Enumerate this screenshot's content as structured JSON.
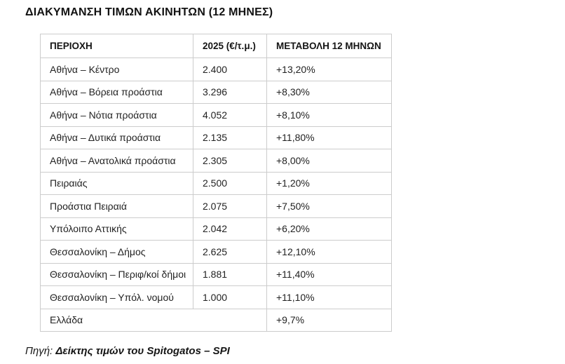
{
  "title": "ΔΙΑΚΥΜΑΝΣΗ ΤΙΜΩΝ ΑΚΙΝΗΤΩΝ (12 ΜΗΝΕΣ)",
  "table": {
    "headers": [
      "ΠΕΡΙΟΧΗ",
      "2025 (€/τ.μ.)",
      "ΜΕΤΑΒΟΛΗ 12 ΜΗΝΩΝ"
    ],
    "rows": [
      {
        "area": "Αθήνα – Κέντρο",
        "price": "2.400",
        "change": "+13,20%"
      },
      {
        "area": "Αθήνα – Βόρεια προάστια",
        "price": "3.296",
        "change": "+8,30%"
      },
      {
        "area": "Αθήνα – Νότια προάστια",
        "price": "4.052",
        "change": "+8,10%"
      },
      {
        "area": "Αθήνα – Δυτικά προάστια",
        "price": "2.135",
        "change": "+11,80%"
      },
      {
        "area": "Αθήνα – Ανατολικά προάστια",
        "price": "2.305",
        "change": "+8,00%"
      },
      {
        "area": "Πειραιάς",
        "price": "2.500",
        "change": "+1,20%"
      },
      {
        "area": "Προάστια Πειραιά",
        "price": "2.075",
        "change": "+7,50%"
      },
      {
        "area": "Υπόλοιπο Αττικής",
        "price": "2.042",
        "change": "+6,20%"
      },
      {
        "area": "Θεσσαλονίκη – Δήμος",
        "price": "2.625",
        "change": "+12,10%"
      },
      {
        "area": "Θεσσαλονίκη – Περιφ/κοί δήμοι",
        "price": "1.881",
        "change": "+11,40%"
      },
      {
        "area": "Θεσσαλονίκη – Υπόλ. νομού",
        "price": "1.000",
        "change": "+11,10%"
      },
      {
        "area": "Ελλάδα",
        "price": "",
        "change": "+9,7%"
      }
    ],
    "border_color": "#cccccc"
  },
  "source": {
    "prefix": "Πηγή: ",
    "text": "Δείκτης τιμών του Spitogatos – SPI"
  }
}
